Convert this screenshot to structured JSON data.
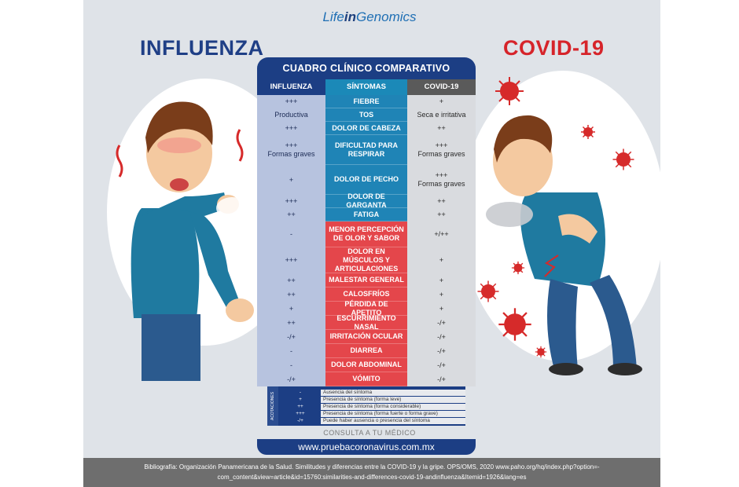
{
  "logo": {
    "pre": "Life",
    "mid": "in",
    "post": "Genomics"
  },
  "titles": {
    "left": "INFLUENZA",
    "right": "COVID-19"
  },
  "table": {
    "header": "CUADRO CLÍNICO COMPARATIVO",
    "col_influenza": "INFLUENZA",
    "col_sintomas": "SÍNTOMAS",
    "col_covid": "COVID-19",
    "rows": [
      {
        "flu": [
          "+++"
        ],
        "sym": "FIEBRE",
        "cov": [
          "+"
        ],
        "style": "blue",
        "h": 17
      },
      {
        "flu": [
          "Productiva"
        ],
        "sym": "TOS",
        "cov": [
          "Seca e irritativa"
        ],
        "style": "blue",
        "h": 17
      },
      {
        "flu": [
          "+++"
        ],
        "sym": "DOLOR DE CABEZA",
        "cov": [
          "++"
        ],
        "style": "blue",
        "h": 17
      },
      {
        "flu": [
          "+++",
          "Formas graves"
        ],
        "sym": "DIFICULTAD PARA RESPIRAR",
        "cov": [
          "+++",
          "Formas graves"
        ],
        "style": "blue",
        "h": 38
      },
      {
        "flu": [
          "+"
        ],
        "sym": "DOLOR DE PECHO",
        "cov": [
          "+++",
          "Formas graves"
        ],
        "style": "blue",
        "h": 38
      },
      {
        "flu": [
          "+++"
        ],
        "sym": "DOLOR DE GARGANTA",
        "cov": [
          "++"
        ],
        "style": "blue",
        "h": 17
      },
      {
        "flu": [
          "++"
        ],
        "sym": "FATIGA",
        "cov": [
          "++"
        ],
        "style": "blue",
        "h": 17
      },
      {
        "flu": [
          "-"
        ],
        "sym": "MENOR PERCEPCIÓN DE OLOR Y SABOR",
        "cov": [
          "+/++"
        ],
        "style": "red",
        "h": 33
      },
      {
        "flu": [
          "+++"
        ],
        "sym": "DOLOR EN MÚSCULOS Y ARTICULACIONES",
        "cov": [
          "+"
        ],
        "style": "red",
        "h": 33
      },
      {
        "flu": [
          "++"
        ],
        "sym": "MALESTAR GENERAL",
        "cov": [
          "+"
        ],
        "style": "red",
        "h": 18
      },
      {
        "flu": [
          "++"
        ],
        "sym": "CALOSFRÍOS",
        "cov": [
          "+"
        ],
        "style": "red",
        "h": 18
      },
      {
        "flu": [
          "+"
        ],
        "sym": "PÉRDIDA DE APETITO",
        "cov": [
          "+"
        ],
        "style": "red",
        "h": 18
      },
      {
        "flu": [
          "++"
        ],
        "sym": "ESCURRIMIENTO NASAL",
        "cov": [
          "-/+"
        ],
        "style": "red",
        "h": 18
      },
      {
        "flu": [
          "-/+"
        ],
        "sym": "IRRITACIÓN OCULAR",
        "cov": [
          "-/+"
        ],
        "style": "red",
        "h": 18
      },
      {
        "flu": [
          "-"
        ],
        "sym": "DIARREA",
        "cov": [
          "-/+"
        ],
        "style": "red",
        "h": 18
      },
      {
        "flu": [
          "-"
        ],
        "sym": "DOLOR ABDOMINAL",
        "cov": [
          "-/+"
        ],
        "style": "red",
        "h": 18
      },
      {
        "flu": [
          "-/+"
        ],
        "sym": "VÓMITO",
        "cov": [
          "-/+"
        ],
        "style": "red",
        "h": 18
      }
    ]
  },
  "legend": {
    "tag": "ACOTACIONES",
    "items": [
      {
        "sym": "-",
        "txt": "Ausencia del síntoma"
      },
      {
        "sym": "+",
        "txt": "Presencia de síntoma (forma leve)"
      },
      {
        "sym": "++",
        "txt": "Presencia de síntoma (forma considerable)"
      },
      {
        "sym": "+++",
        "txt": "Presencia de síntoma  (forma fuerte o forma grave)"
      },
      {
        "sym": "-/+",
        "txt": "Puede haber ausencia o presencia del síntoma"
      }
    ]
  },
  "consulta": "CONSULTA A TU MÉDICO",
  "url": "www.pruebacoronavirus.com.mx",
  "biblio_line1": "Bibliografía: Organización Panamericana de la Salud. Similitudes y diferencias entre la COVID-19 y la gripe. OPS/OMS, 2020 www.paho.org/hq/index.php?option=-",
  "biblio_line2": "com_content&view=article&id=15760:similarities-and-differences-covid-19-andinfluenza&Itemid=1926&lang=es"
}
